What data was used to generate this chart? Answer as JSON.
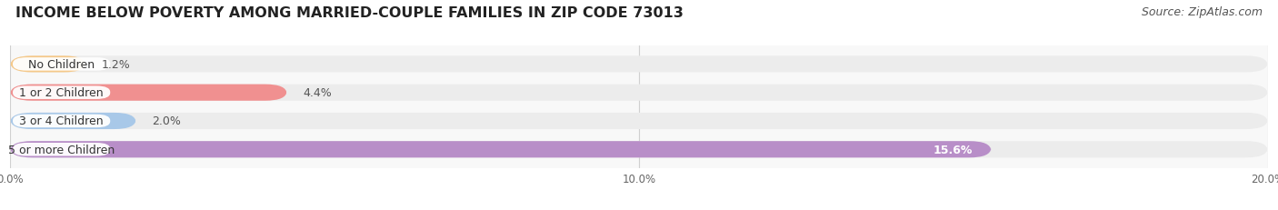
{
  "title": "INCOME BELOW POVERTY AMONG MARRIED-COUPLE FAMILIES IN ZIP CODE 73013",
  "source": "Source: ZipAtlas.com",
  "categories": [
    "No Children",
    "1 or 2 Children",
    "3 or 4 Children",
    "5 or more Children"
  ],
  "values": [
    1.2,
    4.4,
    2.0,
    15.6
  ],
  "bar_colors": [
    "#f5c98a",
    "#f09090",
    "#a8c8e8",
    "#b88ec8"
  ],
  "bar_bg_color": "#ececec",
  "label_bg_color": "#ffffff",
  "xlim": [
    0,
    20.0
  ],
  "xticks": [
    0.0,
    10.0,
    20.0
  ],
  "xtick_labels": [
    "0.0%",
    "10.0%",
    "20.0%"
  ],
  "title_fontsize": 11.5,
  "source_fontsize": 9,
  "label_fontsize": 9,
  "value_fontsize": 9,
  "bar_height": 0.58,
  "figure_bg_color": "#ffffff",
  "axes_bg_color": "#f8f8f8",
  "value_inside_threshold": 14.0
}
